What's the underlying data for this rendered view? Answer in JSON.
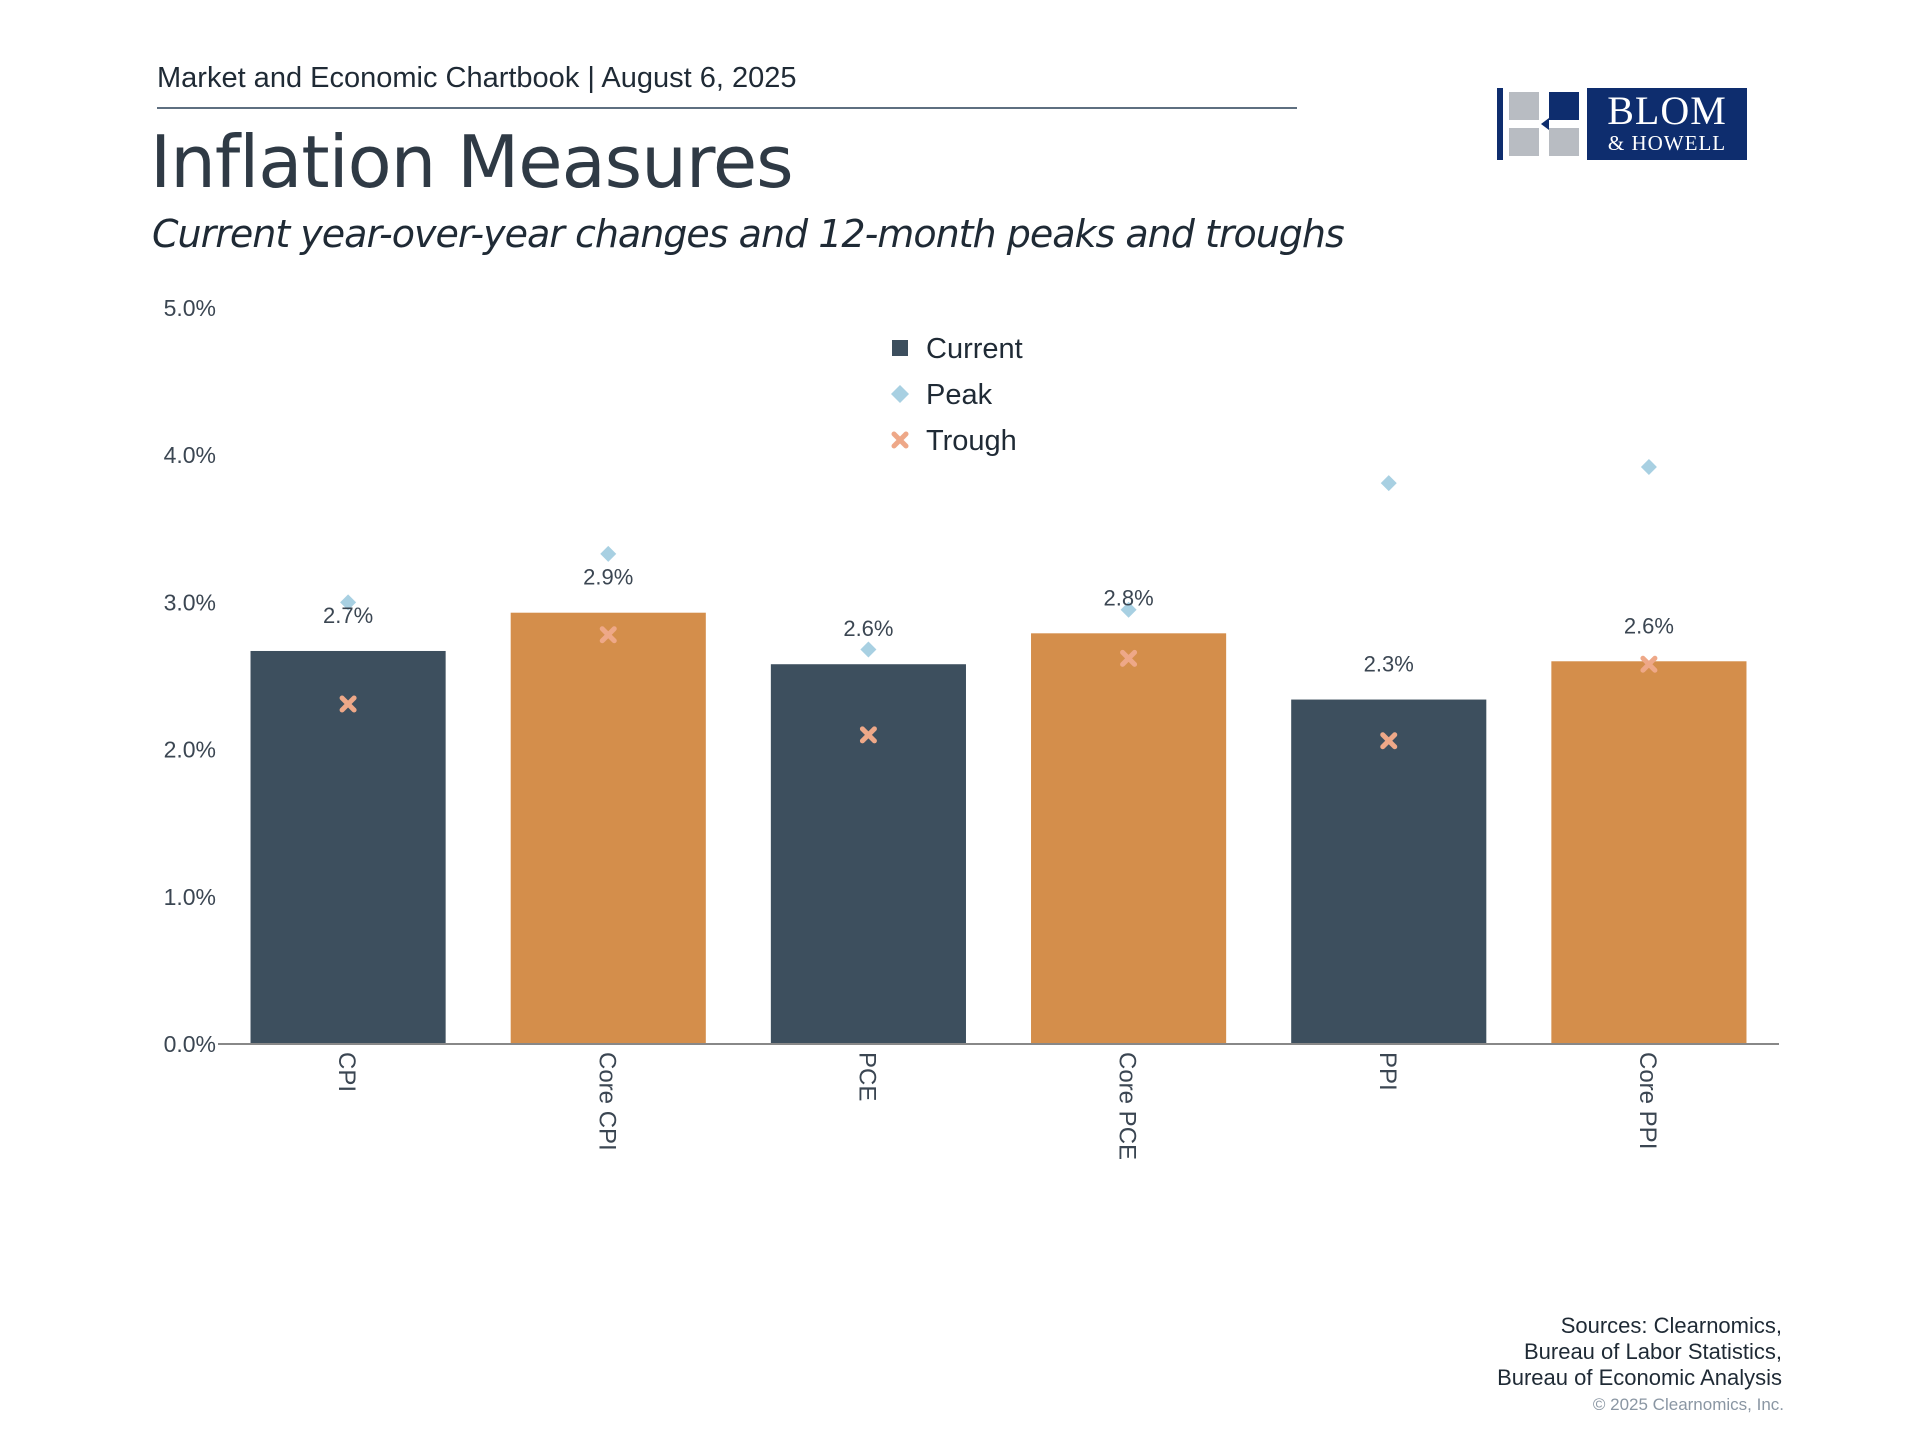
{
  "header": {
    "chartbook": "Market and Economic Chartbook | August 6, 2025",
    "title": "Inflation Measures",
    "subtitle": "Current year-over-year changes and 12-month peaks and troughs"
  },
  "logo": {
    "line1": "BLOM",
    "line2": "& HOWELL"
  },
  "colors": {
    "current_dark": "#3d4f5e",
    "current_orange": "#d48e4b",
    "peak": "#a8d0e2",
    "trough": "#eea888",
    "axis": "#888888",
    "text": "#3b4652"
  },
  "chart_data": {
    "type": "bar",
    "categories": [
      "CPI",
      "Core CPI",
      "PCE",
      "Core PCE",
      "PPI",
      "Core PPI"
    ],
    "series": [
      {
        "name": "Current",
        "values": [
          2.67,
          2.93,
          2.58,
          2.79,
          2.34,
          2.6
        ]
      },
      {
        "name": "Peak",
        "values": [
          3.0,
          3.33,
          2.68,
          2.95,
          3.81,
          3.92
        ]
      },
      {
        "name": "Trough",
        "values": [
          2.31,
          2.78,
          2.1,
          2.62,
          2.06,
          2.58
        ]
      }
    ],
    "data_labels": [
      "2.7%",
      "2.9%",
      "2.6%",
      "2.8%",
      "2.3%",
      "2.6%"
    ],
    "yticks": [
      "0.0%",
      "1.0%",
      "2.0%",
      "3.0%",
      "4.0%",
      "5.0%"
    ],
    "ylim": [
      0,
      5
    ],
    "bar_colors": [
      "dark",
      "orange",
      "dark",
      "orange",
      "dark",
      "orange"
    ],
    "legend_position": "top-center",
    "grid": false
  },
  "sources": {
    "line1": "Sources: Clearnomics,",
    "line2": "Bureau of Labor Statistics,",
    "line3": "Bureau of Economic Analysis",
    "copyright": "© 2025 Clearnomics, Inc."
  }
}
